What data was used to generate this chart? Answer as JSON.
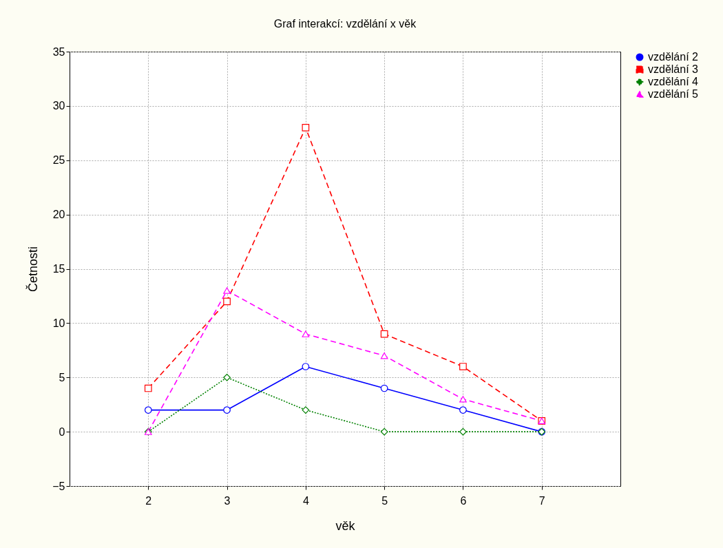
{
  "chart_data": {
    "type": "line",
    "title": "Graf interakcí: vzdělání x věk",
    "xlabel": "věk",
    "ylabel": "Četnosti",
    "x": [
      2,
      3,
      4,
      5,
      6,
      7
    ],
    "series": [
      {
        "name": "vzdělání 2",
        "color": "#0000ff",
        "marker": "circle",
        "line_style": "solid",
        "values": [
          2,
          2,
          6,
          4,
          2,
          0
        ]
      },
      {
        "name": "vzdělání 3",
        "color": "#ff0000",
        "marker": "square",
        "line_style": "dashed",
        "values": [
          4,
          12,
          28,
          9,
          6,
          1
        ]
      },
      {
        "name": "vzdělání 4",
        "color": "#008000",
        "marker": "diamond",
        "line_style": "dotted",
        "values": [
          0,
          5,
          2,
          0,
          0,
          0
        ]
      },
      {
        "name": "vzdělání 5",
        "color": "#ff00ff",
        "marker": "triangle",
        "line_style": "dashed",
        "values": [
          0,
          13,
          9,
          7,
          3,
          1
        ]
      }
    ],
    "xlim": [
      1,
      8
    ],
    "xticks": [
      2,
      3,
      4,
      5,
      6,
      7
    ],
    "ylim": [
      -5,
      35
    ],
    "yticks": [
      -5,
      0,
      5,
      10,
      15,
      20,
      25,
      30,
      35
    ],
    "grid": true,
    "legend": "right"
  }
}
